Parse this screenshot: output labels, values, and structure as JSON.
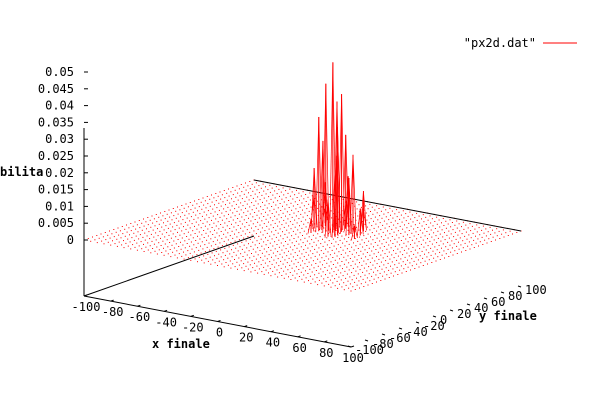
{
  "chart_data": {
    "type": "surface3d",
    "title": "",
    "xlabel": "x finale",
    "ylabel": "y finale",
    "zlabel": "probabilita",
    "zlabel_visible": "bilita",
    "xlim": [
      -100,
      100
    ],
    "ylim": [
      -100,
      100
    ],
    "zlim": [
      0,
      0.05
    ],
    "x_ticks": [
      "-100",
      "-80",
      "-60",
      "-40",
      "-20",
      "0",
      "20",
      "40",
      "60",
      "80",
      "100"
    ],
    "y_ticks": [
      "-100",
      "-80",
      "-60",
      "-40",
      "-20",
      "0",
      "20",
      "40",
      "60",
      "80",
      "100"
    ],
    "z_ticks": [
      "0",
      "0.005",
      "0.01",
      "0.015",
      "0.02",
      "0.025",
      "0.03",
      "0.035",
      "0.04",
      "0.045",
      "0.05"
    ],
    "series": [
      {
        "name": "\"px2d.dat\"",
        "color": "#ff0000",
        "grid_step": 5,
        "peaks": [
          {
            "x": 10,
            "y": 20,
            "z": 0.0505
          },
          {
            "x": 6,
            "y": 18,
            "z": 0.044
          },
          {
            "x": 14,
            "y": 24,
            "z": 0.041
          },
          {
            "x": 8,
            "y": 28,
            "z": 0.038
          },
          {
            "x": 2,
            "y": 16,
            "z": 0.034
          },
          {
            "x": 16,
            "y": 16,
            "z": 0.032
          },
          {
            "x": 12,
            "y": 32,
            "z": 0.028
          },
          {
            "x": 0,
            "y": 24,
            "z": 0.026
          },
          {
            "x": 20,
            "y": 28,
            "z": 0.023
          },
          {
            "x": 4,
            "y": 34,
            "z": 0.021
          },
          {
            "x": 18,
            "y": 10,
            "z": 0.02
          },
          {
            "x": -4,
            "y": 20,
            "z": 0.018
          },
          {
            "x": 22,
            "y": 20,
            "z": 0.017
          },
          {
            "x": 10,
            "y": 38,
            "z": 0.015
          },
          {
            "x": -2,
            "y": 30,
            "z": 0.013
          },
          {
            "x": 24,
            "y": 34,
            "z": 0.012
          },
          {
            "x": 14,
            "y": 8,
            "z": 0.011
          },
          {
            "x": -8,
            "y": 26,
            "z": 0.009
          },
          {
            "x": 28,
            "y": 24,
            "z": 0.008
          },
          {
            "x": 6,
            "y": 42,
            "z": 0.007
          },
          {
            "x": 20,
            "y": 40,
            "z": 0.006
          },
          {
            "x": -6,
            "y": 36,
            "z": 0.005
          },
          {
            "x": 30,
            "y": 14,
            "z": 0.004
          },
          {
            "x": 0,
            "y": 10,
            "z": 0.004
          }
        ]
      }
    ],
    "legend_position": "top-right"
  }
}
